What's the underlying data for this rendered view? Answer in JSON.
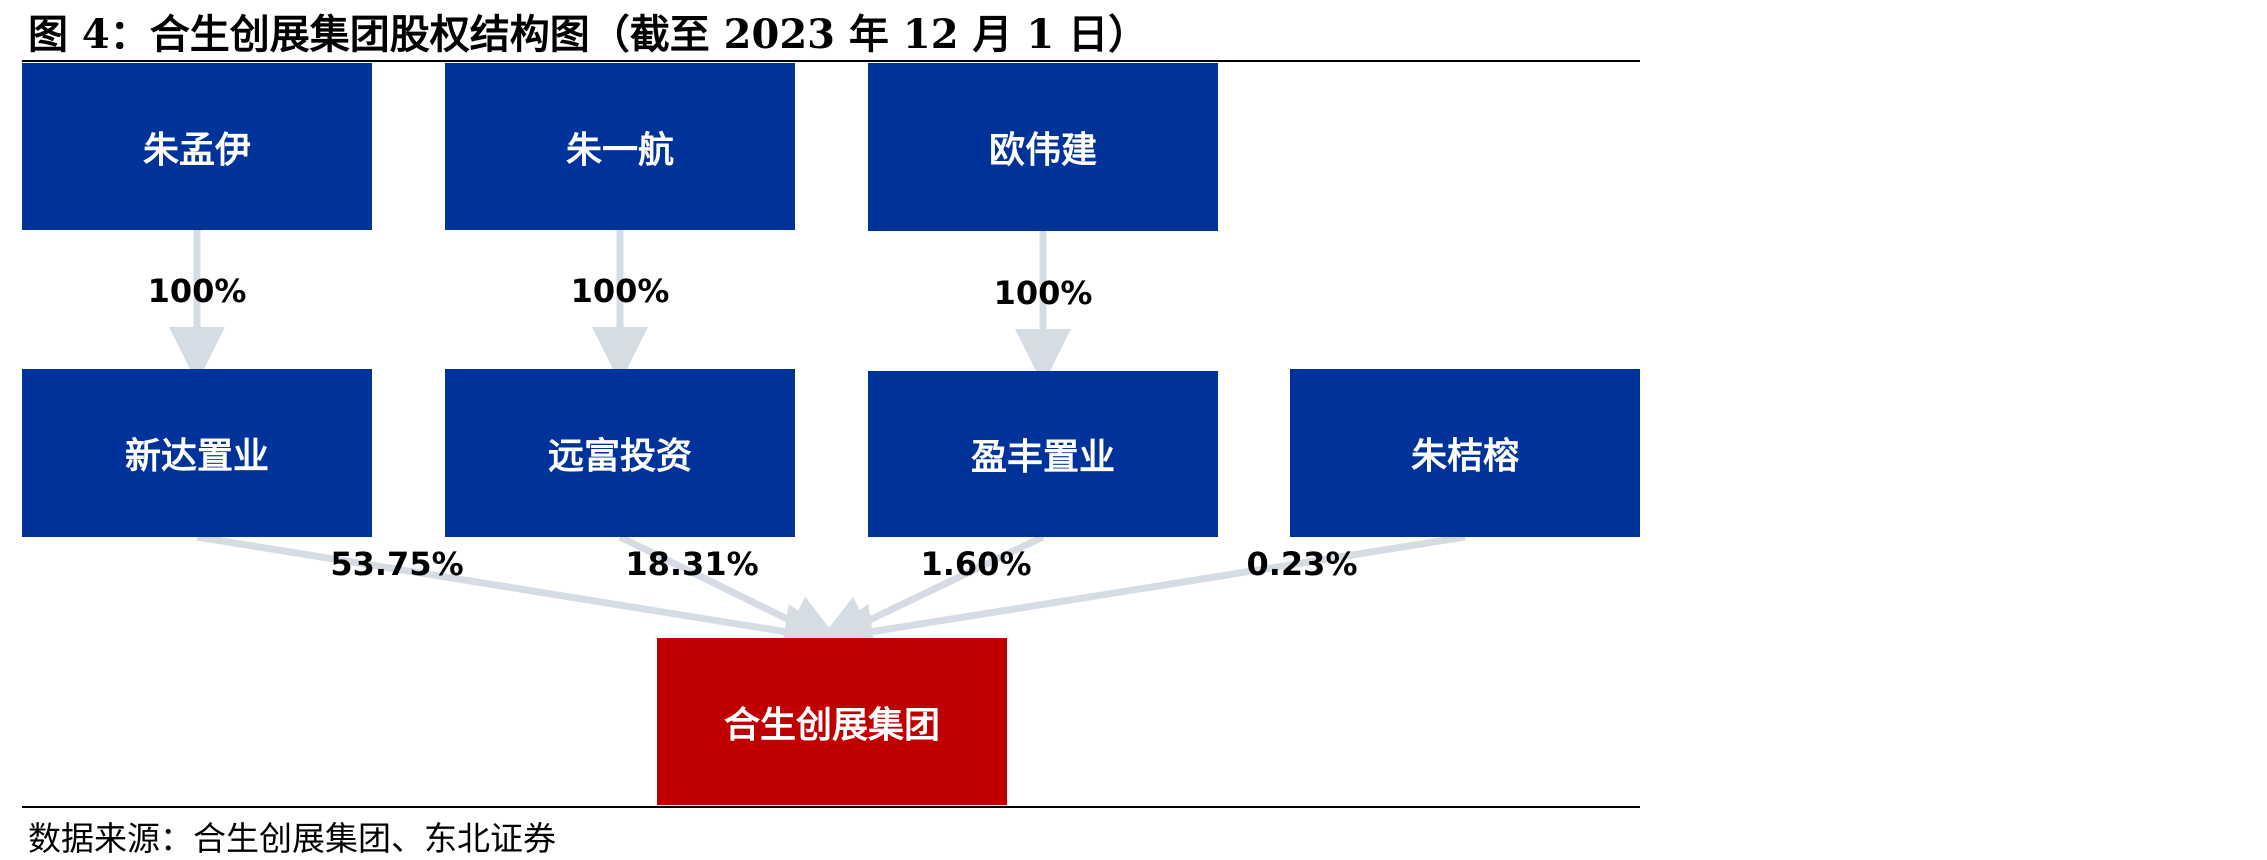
{
  "title": "图 4：合生创展集团股权结构图（截至 2023 年 12 月 1 日）",
  "source": "数据来源：合生创展集团、东北证券",
  "top_row": [
    {
      "id": "zhu-mengyi",
      "label": "朱孟伊",
      "pct_to_child": "100%"
    },
    {
      "id": "zhu-yihang",
      "label": "朱一航",
      "pct_to_child": "100%"
    },
    {
      "id": "ou-weijian",
      "label": "欧伟建",
      "pct_to_child": "100%"
    }
  ],
  "middle_row": [
    {
      "id": "xinda",
      "label": "新达置业",
      "pct_to_group": "53.75%"
    },
    {
      "id": "yuanfu",
      "label": "远富投资",
      "pct_to_group": "18.31%"
    },
    {
      "id": "yingfeng",
      "label": "盈丰置业",
      "pct_to_group": "1.60%"
    },
    {
      "id": "zhu-jierong",
      "label": "朱桔榕",
      "pct_to_group": "0.23%"
    }
  ],
  "group": {
    "label": "合生创展集团"
  },
  "colors": {
    "shareholder_box": "#003399",
    "group_box": "#c00000",
    "arrow": "#d6dce4"
  }
}
